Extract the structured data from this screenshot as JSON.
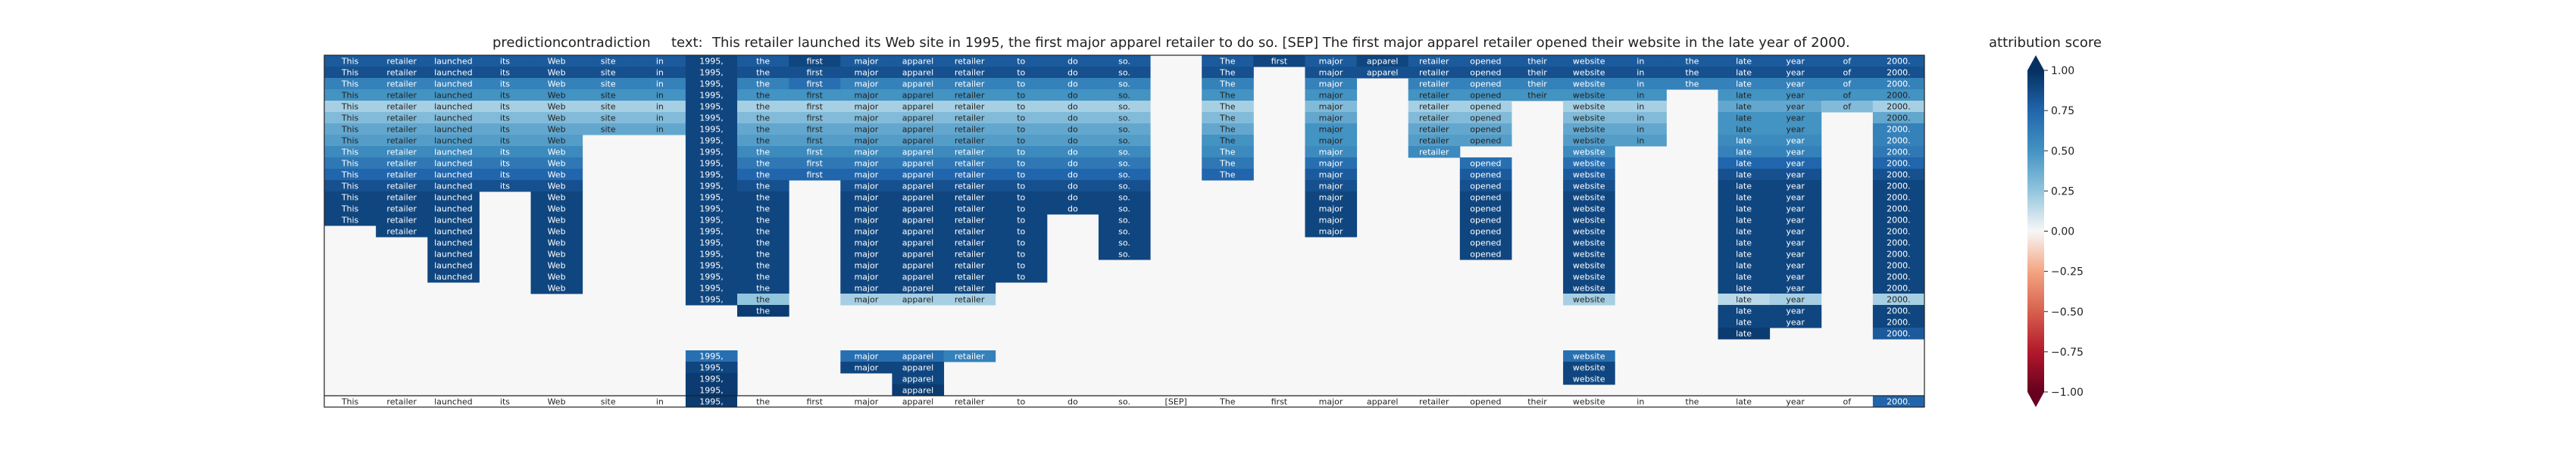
{
  "header": {
    "prediction_label": "prediction:",
    "prediction_value": "contradiction",
    "text_label": "text:",
    "text_value": "This retailer launched its Web site in 1995, the first major apparel retailer to do so. [SEP] The first major apparel retailer opened their website in the late year of 2000."
  },
  "colorbar": {
    "title": "attribution score",
    "ticks": [
      "1.00",
      "0.75",
      "0.50",
      "0.25",
      "0.00",
      "−0.25",
      "−0.50",
      "−0.75",
      "−1.00"
    ],
    "tick_values": [
      1.0,
      0.75,
      0.5,
      0.25,
      0.0,
      -0.25,
      -0.5,
      -0.75,
      -1.0
    ],
    "colormap": "RdBu",
    "range": [
      -1,
      1
    ]
  },
  "chart_data": {
    "type": "heatmap",
    "tokens": [
      "This",
      "retailer",
      "launched",
      "its",
      "Web",
      "site",
      "in",
      "1995,",
      "the",
      "first",
      "major",
      "apparel",
      "retailer",
      "to",
      "do",
      "so.",
      "[SEP]",
      "The",
      "first",
      "major",
      "apparel",
      "retailer",
      "opened",
      "their",
      "website",
      "in",
      "the",
      "late",
      "year",
      "of",
      "2000."
    ],
    "bottom_row_labels": [
      "This",
      "retailer",
      "launched",
      "its",
      "Web",
      "site",
      "in",
      "1995,",
      "the",
      "first",
      "major",
      "apparel",
      "retailer",
      "to",
      "do",
      "so.",
      "[SEP]",
      "The",
      "first",
      "major",
      "apparel",
      "retailer",
      "opened",
      "their",
      "website",
      "in",
      "the",
      "late",
      "year",
      "of",
      "2000."
    ],
    "bottom_row_scores": [
      0,
      0,
      0,
      0,
      0,
      0,
      0,
      0.95,
      0,
      0,
      0,
      0,
      0,
      0,
      0,
      0,
      0,
      0,
      0,
      0,
      0,
      0,
      0,
      0,
      0,
      0,
      0,
      0,
      0,
      0,
      0.75
    ],
    "ylim": [
      0,
      32
    ],
    "rows": [
      {
        "values": [
          0.8,
          0.8,
          0.8,
          0.8,
          0.8,
          0.8,
          0.8,
          0.9,
          0.8,
          0.9,
          0.8,
          0.8,
          0.8,
          0.8,
          0.8,
          0.8,
          0,
          0.8,
          0.9,
          0.8,
          0.9,
          0.8,
          0.8,
          0.8,
          0.8,
          0.8,
          0.8,
          0.8,
          0.8,
          0.8,
          0.8
        ]
      },
      {
        "values": [
          0.85,
          0.85,
          0.85,
          0.85,
          0.85,
          0.85,
          0.85,
          0.9,
          0.85,
          0.85,
          0.85,
          0.85,
          0.85,
          0.85,
          0.85,
          0.85,
          0,
          0.85,
          0,
          0.85,
          0.85,
          0.85,
          0.85,
          0.85,
          0.85,
          0.85,
          0.85,
          0.85,
          0.85,
          0.85,
          0.85
        ]
      },
      {
        "values": [
          0.6,
          0.6,
          0.6,
          0.6,
          0.6,
          0.6,
          0.6,
          0.9,
          0.6,
          0.7,
          0.6,
          0.6,
          0.6,
          0.6,
          0.6,
          0.6,
          0,
          0.6,
          0,
          0.6,
          0,
          0.6,
          0.6,
          0.6,
          0.6,
          0.6,
          0.6,
          0.6,
          0.6,
          0.6,
          0.6
        ]
      },
      {
        "values": [
          0.5,
          0.5,
          0.5,
          0.5,
          0.5,
          0.5,
          0.5,
          0.9,
          0.5,
          0.5,
          0.5,
          0.5,
          0.5,
          0.5,
          0.5,
          0.5,
          0,
          0.5,
          0,
          0.5,
          0,
          0.5,
          0.5,
          0.5,
          0.5,
          0.5,
          0,
          0.5,
          0.5,
          0.5,
          0.5
        ]
      },
      {
        "values": [
          0.2,
          0.2,
          0.2,
          0.2,
          0.2,
          0.2,
          0.2,
          0.9,
          0.2,
          0.2,
          0.2,
          0.2,
          0.2,
          0.2,
          0.2,
          0.2,
          0,
          0.2,
          0,
          0.3,
          0,
          0.2,
          0.2,
          0,
          0.2,
          0.2,
          0,
          0.4,
          0.4,
          0.3,
          0.2
        ]
      },
      {
        "values": [
          0.3,
          0.3,
          0.3,
          0.3,
          0.3,
          0.3,
          0.3,
          0.9,
          0.3,
          0.3,
          0.3,
          0.3,
          0.3,
          0.3,
          0.3,
          0.3,
          0,
          0.3,
          0,
          0.4,
          0,
          0.3,
          0.3,
          0,
          0.3,
          0.3,
          0,
          0.5,
          0.5,
          0,
          0.4
        ]
      },
      {
        "values": [
          0.4,
          0.4,
          0.4,
          0.4,
          0.4,
          0.4,
          0.4,
          0.9,
          0.4,
          0.4,
          0.4,
          0.4,
          0.4,
          0.4,
          0.4,
          0.4,
          0,
          0.4,
          0,
          0.5,
          0,
          0.4,
          0.4,
          0,
          0.4,
          0.4,
          0,
          0.5,
          0.5,
          0,
          0.6
        ]
      },
      {
        "values": [
          0.45,
          0.45,
          0.45,
          0.45,
          0.45,
          0,
          0,
          0.9,
          0.45,
          0.45,
          0.45,
          0.45,
          0.45,
          0.45,
          0.45,
          0.45,
          0,
          0.5,
          0,
          0.5,
          0,
          0.45,
          0.45,
          0,
          0.45,
          0.45,
          0,
          0.55,
          0.55,
          0,
          0.6
        ]
      },
      {
        "values": [
          0.55,
          0.55,
          0.55,
          0.55,
          0.55,
          0,
          0,
          0.9,
          0.55,
          0.55,
          0.55,
          0.55,
          0.55,
          0.55,
          0.55,
          0.55,
          0,
          0.55,
          0,
          0.55,
          0,
          0.55,
          0,
          0,
          0.55,
          0,
          0,
          0.6,
          0.6,
          0,
          0.65
        ]
      },
      {
        "values": [
          0.65,
          0.65,
          0.65,
          0.65,
          0.65,
          0,
          0,
          0.9,
          0.65,
          0.65,
          0.65,
          0.65,
          0.65,
          0.65,
          0.65,
          0.65,
          0,
          0.65,
          0,
          0.7,
          0,
          0,
          0.7,
          0,
          0.7,
          0,
          0,
          0.75,
          0.75,
          0,
          0.75
        ]
      },
      {
        "values": [
          0.75,
          0.75,
          0.75,
          0.75,
          0.75,
          0,
          0,
          0.9,
          0.75,
          0.75,
          0.75,
          0.75,
          0.75,
          0.75,
          0.75,
          0.75,
          0,
          0.75,
          0,
          0.8,
          0,
          0,
          0.8,
          0,
          0.8,
          0,
          0,
          0.85,
          0.85,
          0,
          0.85
        ]
      },
      {
        "values": [
          0.85,
          0.85,
          0.85,
          0.85,
          0.85,
          0,
          0,
          0.9,
          0.85,
          0,
          0.85,
          0.85,
          0.85,
          0.85,
          0.85,
          0.85,
          0,
          0,
          0,
          0.85,
          0,
          0,
          0.85,
          0,
          0.85,
          0,
          0,
          0.9,
          0.9,
          0,
          0.9
        ]
      },
      {
        "values": [
          0.9,
          0.9,
          0.9,
          0,
          0.9,
          0,
          0,
          0.9,
          0.9,
          0,
          0.9,
          0.9,
          0.9,
          0.9,
          0.9,
          0.9,
          0,
          0,
          0,
          0.9,
          0,
          0,
          0.9,
          0,
          0.9,
          0,
          0,
          0.9,
          0.9,
          0,
          0.9
        ]
      },
      {
        "values": [
          0.9,
          0.9,
          0.9,
          0,
          0.9,
          0,
          0,
          0.9,
          0.9,
          0,
          0.9,
          0.9,
          0.9,
          0.9,
          0.9,
          0.9,
          0,
          0,
          0,
          0.9,
          0,
          0,
          0.9,
          0,
          0.9,
          0,
          0,
          0.9,
          0.9,
          0,
          0.9
        ]
      },
      {
        "values": [
          0.9,
          0.9,
          0.9,
          0,
          0.9,
          0,
          0,
          0.9,
          0.9,
          0,
          0.9,
          0.9,
          0.9,
          0.9,
          0,
          0.9,
          0,
          0,
          0,
          0.9,
          0,
          0,
          0.9,
          0,
          0.9,
          0,
          0,
          0.9,
          0.9,
          0,
          0.9
        ]
      },
      {
        "values": [
          0,
          0.9,
          0.9,
          0,
          0.9,
          0,
          0,
          0.9,
          0.9,
          0,
          0.9,
          0.9,
          0.9,
          0.9,
          0,
          0.9,
          0,
          0,
          0,
          0.9,
          0,
          0,
          0.9,
          0,
          0.9,
          0,
          0,
          0.9,
          0.9,
          0,
          0.9
        ]
      },
      {
        "values": [
          0,
          0,
          0.9,
          0,
          0.9,
          0,
          0,
          0.9,
          0.9,
          0,
          0.9,
          0.9,
          0.9,
          0.9,
          0,
          0.9,
          0,
          0,
          0,
          0,
          0,
          0,
          0.9,
          0,
          0.9,
          0,
          0,
          0.9,
          0.9,
          0,
          0.9
        ]
      },
      {
        "values": [
          0,
          0,
          0.9,
          0,
          0.9,
          0,
          0,
          0.9,
          0.9,
          0,
          0.9,
          0.9,
          0.9,
          0.9,
          0,
          0.9,
          0,
          0,
          0,
          0,
          0,
          0,
          0.9,
          0,
          0.9,
          0,
          0,
          0.9,
          0.9,
          0,
          0.9
        ]
      },
      {
        "values": [
          0,
          0,
          0.9,
          0,
          0.9,
          0,
          0,
          0.9,
          0.9,
          0,
          0.9,
          0.9,
          0.9,
          0.9,
          0,
          0,
          0,
          0,
          0,
          0,
          0,
          0,
          0,
          0,
          0.9,
          0,
          0,
          0.9,
          0.9,
          0,
          0.9
        ]
      },
      {
        "values": [
          0,
          0,
          0.9,
          0,
          0.9,
          0,
          0,
          0.9,
          0.9,
          0,
          0.9,
          0.9,
          0.9,
          0.9,
          0,
          0,
          0,
          0,
          0,
          0,
          0,
          0,
          0,
          0,
          0.9,
          0,
          0,
          0.9,
          0.9,
          0,
          0.9
        ]
      },
      {
        "values": [
          0,
          0,
          0,
          0,
          0.9,
          0,
          0,
          0.9,
          0.9,
          0,
          0.9,
          0.9,
          0.9,
          0,
          0,
          0,
          0,
          0,
          0,
          0,
          0,
          0,
          0,
          0,
          0.9,
          0,
          0,
          0.9,
          0.9,
          0,
          0.9
        ]
      },
      {
        "values": [
          0,
          0,
          0,
          0,
          0,
          0,
          0,
          0.9,
          0.25,
          0,
          0.2,
          0.2,
          0.2,
          0,
          0,
          0,
          0,
          0,
          0,
          0,
          0,
          0,
          0,
          0,
          0.2,
          0,
          0,
          0.15,
          0.2,
          0,
          0.2
        ]
      },
      {
        "values": [
          0,
          0,
          0,
          0,
          0,
          0,
          0,
          0,
          0.95,
          0,
          0,
          0,
          0,
          0,
          0,
          0,
          0,
          0,
          0,
          0,
          0,
          0,
          0,
          0,
          0,
          0,
          0,
          0.9,
          0.9,
          0,
          0.9
        ]
      },
      {
        "values": [
          0,
          0,
          0,
          0,
          0,
          0,
          0,
          0,
          0,
          0,
          0,
          0,
          0,
          0,
          0,
          0,
          0,
          0,
          0,
          0,
          0,
          0,
          0,
          0,
          0,
          0,
          0,
          0.9,
          0.9,
          0,
          0.9
        ]
      },
      {
        "values": [
          0,
          0,
          0,
          0,
          0,
          0,
          0,
          0,
          0,
          0,
          0,
          0,
          0,
          0,
          0,
          0,
          0,
          0,
          0,
          0,
          0,
          0,
          0,
          0,
          0,
          0,
          0,
          0.95,
          0,
          0,
          0.8
        ]
      },
      {
        "values": [
          0,
          0,
          0,
          0,
          0,
          0,
          0,
          0,
          0,
          0,
          0,
          0,
          0,
          0,
          0,
          0,
          0,
          0,
          0,
          0,
          0,
          0,
          0,
          0,
          0,
          0,
          0,
          0,
          0,
          0,
          0
        ]
      },
      {
        "values": [
          0,
          0,
          0,
          0,
          0,
          0,
          0,
          0.7,
          0,
          0,
          0.7,
          0.7,
          0.6,
          0,
          0,
          0,
          0,
          0,
          0,
          0,
          0,
          0,
          0,
          0,
          0.7,
          0,
          0,
          0,
          0,
          0,
          0
        ]
      },
      {
        "values": [
          0,
          0,
          0,
          0,
          0,
          0,
          0,
          0.9,
          0,
          0,
          0.9,
          0.9,
          0,
          0,
          0,
          0,
          0,
          0,
          0,
          0,
          0,
          0,
          0,
          0,
          0.9,
          0,
          0,
          0,
          0,
          0,
          0
        ]
      },
      {
        "values": [
          0,
          0,
          0,
          0,
          0,
          0,
          0,
          0.95,
          0,
          0,
          0,
          0.9,
          0,
          0,
          0,
          0,
          0,
          0,
          0,
          0,
          0,
          0,
          0,
          0,
          0.9,
          0,
          0,
          0,
          0,
          0,
          0
        ]
      },
      {
        "values": [
          0,
          0,
          0,
          0,
          0,
          0,
          0,
          0.95,
          0,
          0,
          0,
          0.95,
          0,
          0,
          0,
          0,
          0,
          0,
          0,
          0,
          0,
          0,
          0,
          0,
          0,
          0,
          0,
          0,
          0,
          0,
          0
        ]
      }
    ]
  }
}
